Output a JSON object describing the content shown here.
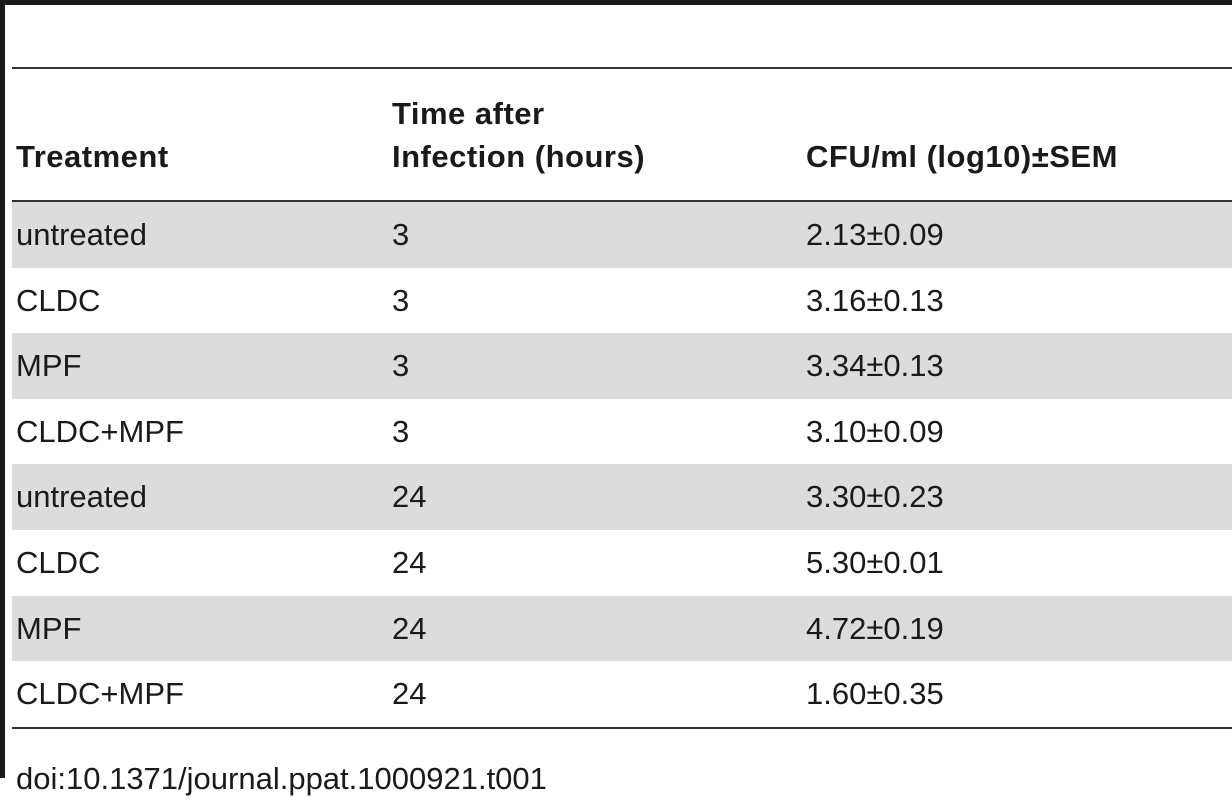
{
  "table": {
    "headers": [
      "Treatment",
      "Time after\nInfection (hours)",
      "CFU/ml (log10)±SEM"
    ],
    "rows": [
      {
        "treatment": "untreated",
        "time": "3",
        "cfu": "2.13±0.09"
      },
      {
        "treatment": "CLDC",
        "time": "3",
        "cfu": "3.16±0.13"
      },
      {
        "treatment": "MPF",
        "time": "3",
        "cfu": "3.34±0.13"
      },
      {
        "treatment": "CLDC+MPF",
        "time": "3",
        "cfu": "3.10±0.09"
      },
      {
        "treatment": "untreated",
        "time": "24",
        "cfu": "3.30±0.23"
      },
      {
        "treatment": "CLDC",
        "time": "24",
        "cfu": "5.30±0.01"
      },
      {
        "treatment": "MPF",
        "time": "24",
        "cfu": "4.72±0.19"
      },
      {
        "treatment": "CLDC+MPF",
        "time": "24",
        "cfu": "1.60±0.35"
      }
    ]
  },
  "footer": {
    "doi": "doi:10.1371/journal.ppat.1000921.t001"
  }
}
